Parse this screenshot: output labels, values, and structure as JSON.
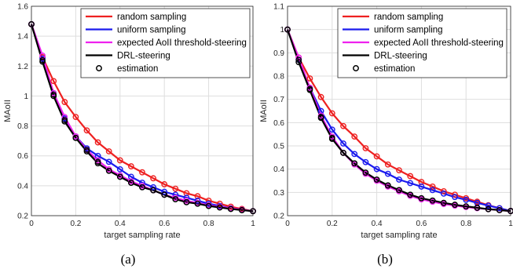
{
  "legend": [
    {
      "label": "random sampling",
      "color": "#ee2020",
      "kind": "line"
    },
    {
      "label": "uniform sampling",
      "color": "#1a1aee",
      "kind": "line"
    },
    {
      "label": "expected AoII threshold-steering",
      "color": "#ee22ee",
      "kind": "line"
    },
    {
      "label": "DRL-steering",
      "color": "#000000",
      "kind": "line"
    },
    {
      "label": "estimation",
      "color": "#000000",
      "kind": "marker"
    }
  ],
  "chart_data": [
    {
      "type": "line",
      "caption": "(a)",
      "xlabel": "target sampling rate",
      "ylabel": "MAoII",
      "xlim": [
        0,
        1
      ],
      "ylim": [
        0.2,
        1.6
      ],
      "xticks": [
        "0",
        "0.2",
        "0.4",
        "0.6",
        "0.8",
        "1"
      ],
      "yticks": [
        "0.2",
        "0.4",
        "0.6",
        "0.8",
        "1",
        "1.2",
        "1.4",
        "1.6"
      ],
      "grid": true,
      "legend_position": "top-right",
      "x": [
        0,
        0.05,
        0.1,
        0.15,
        0.2,
        0.25,
        0.3,
        0.35,
        0.4,
        0.45,
        0.5,
        0.55,
        0.6,
        0.65,
        0.7,
        0.75,
        0.8,
        0.85,
        0.9,
        0.95,
        1
      ],
      "series": [
        {
          "name": "random sampling",
          "color": "#ee2020",
          "values": [
            1.48,
            1.26,
            1.1,
            0.96,
            0.86,
            0.77,
            0.69,
            0.63,
            0.57,
            0.53,
            0.49,
            0.45,
            0.41,
            0.38,
            0.35,
            0.33,
            0.3,
            0.28,
            0.26,
            0.245,
            0.23
          ]
        },
        {
          "name": "uniform sampling",
          "color": "#1a1aee",
          "values": [
            1.48,
            1.25,
            1.02,
            0.85,
            0.73,
            0.65,
            0.6,
            0.56,
            0.51,
            0.46,
            0.42,
            0.39,
            0.36,
            0.34,
            0.32,
            0.3,
            0.28,
            0.265,
            0.25,
            0.24,
            0.23
          ]
        },
        {
          "name": "expected AoII threshold-steering",
          "color": "#ee22ee",
          "values": [
            1.48,
            1.27,
            1.02,
            0.86,
            0.73,
            0.64,
            0.57,
            0.51,
            0.47,
            0.43,
            0.4,
            0.37,
            0.34,
            0.32,
            0.3,
            0.285,
            0.27,
            0.26,
            0.25,
            0.24,
            0.23
          ]
        },
        {
          "name": "DRL-steering",
          "color": "#000000",
          "values": [
            1.48,
            1.23,
            1.0,
            0.83,
            0.72,
            0.63,
            0.55,
            0.5,
            0.46,
            0.42,
            0.39,
            0.37,
            0.34,
            0.31,
            0.29,
            0.28,
            0.265,
            0.255,
            0.245,
            0.237,
            0.23
          ]
        }
      ],
      "estimation": {
        "name": "estimation",
        "values": [
          1.48,
          1.24,
          1.01,
          0.84,
          0.72,
          0.64,
          0.56,
          0.5,
          0.46,
          0.42,
          0.39,
          0.37,
          0.34,
          0.31,
          0.29,
          0.28,
          0.265,
          0.255,
          0.245,
          0.237,
          0.23
        ]
      }
    },
    {
      "type": "line",
      "caption": "(b)",
      "xlabel": "target sampling rate",
      "ylabel": "MAoII",
      "xlim": [
        0,
        1
      ],
      "ylim": [
        0.2,
        1.1
      ],
      "xticks": [
        "0",
        "0.2",
        "0.4",
        "0.6",
        "0.8",
        "1"
      ],
      "yticks": [
        "0.2",
        "0.3",
        "0.4",
        "0.5",
        "0.6",
        "0.7",
        "0.8",
        "0.9",
        "1",
        "1.1"
      ],
      "grid": true,
      "legend_position": "top-right",
      "x": [
        0,
        0.05,
        0.1,
        0.15,
        0.2,
        0.25,
        0.3,
        0.35,
        0.4,
        0.45,
        0.5,
        0.55,
        0.6,
        0.65,
        0.7,
        0.75,
        0.8,
        0.85,
        0.9,
        0.95,
        1
      ],
      "series": [
        {
          "name": "random sampling",
          "color": "#ee2020",
          "values": [
            1.0,
            0.88,
            0.79,
            0.71,
            0.64,
            0.585,
            0.54,
            0.49,
            0.455,
            0.42,
            0.395,
            0.37,
            0.345,
            0.325,
            0.305,
            0.29,
            0.275,
            0.26,
            0.245,
            0.232,
            0.22
          ]
        },
        {
          "name": "uniform sampling",
          "color": "#1a1aee",
          "values": [
            1.0,
            0.87,
            0.75,
            0.65,
            0.57,
            0.51,
            0.465,
            0.43,
            0.4,
            0.38,
            0.355,
            0.34,
            0.325,
            0.31,
            0.295,
            0.28,
            0.268,
            0.255,
            0.243,
            0.232,
            0.22
          ]
        },
        {
          "name": "expected AoII threshold-steering",
          "color": "#ee22ee",
          "values": [
            1.0,
            0.88,
            0.75,
            0.63,
            0.54,
            0.47,
            0.42,
            0.38,
            0.35,
            0.325,
            0.305,
            0.285,
            0.27,
            0.26,
            0.25,
            0.243,
            0.237,
            0.232,
            0.228,
            0.224,
            0.22
          ]
        },
        {
          "name": "DRL-steering",
          "color": "#000000",
          "values": [
            1.0,
            0.86,
            0.74,
            0.62,
            0.53,
            0.47,
            0.425,
            0.385,
            0.355,
            0.33,
            0.31,
            0.29,
            0.275,
            0.265,
            0.255,
            0.247,
            0.24,
            0.234,
            0.228,
            0.224,
            0.22
          ]
        }
      ],
      "estimation": {
        "name": "estimation",
        "values": [
          1.0,
          0.87,
          0.745,
          0.625,
          0.535,
          0.47,
          0.425,
          0.385,
          0.355,
          0.33,
          0.31,
          0.29,
          0.275,
          0.265,
          0.255,
          0.247,
          0.24,
          0.234,
          0.228,
          0.224,
          0.22
        ]
      }
    }
  ]
}
